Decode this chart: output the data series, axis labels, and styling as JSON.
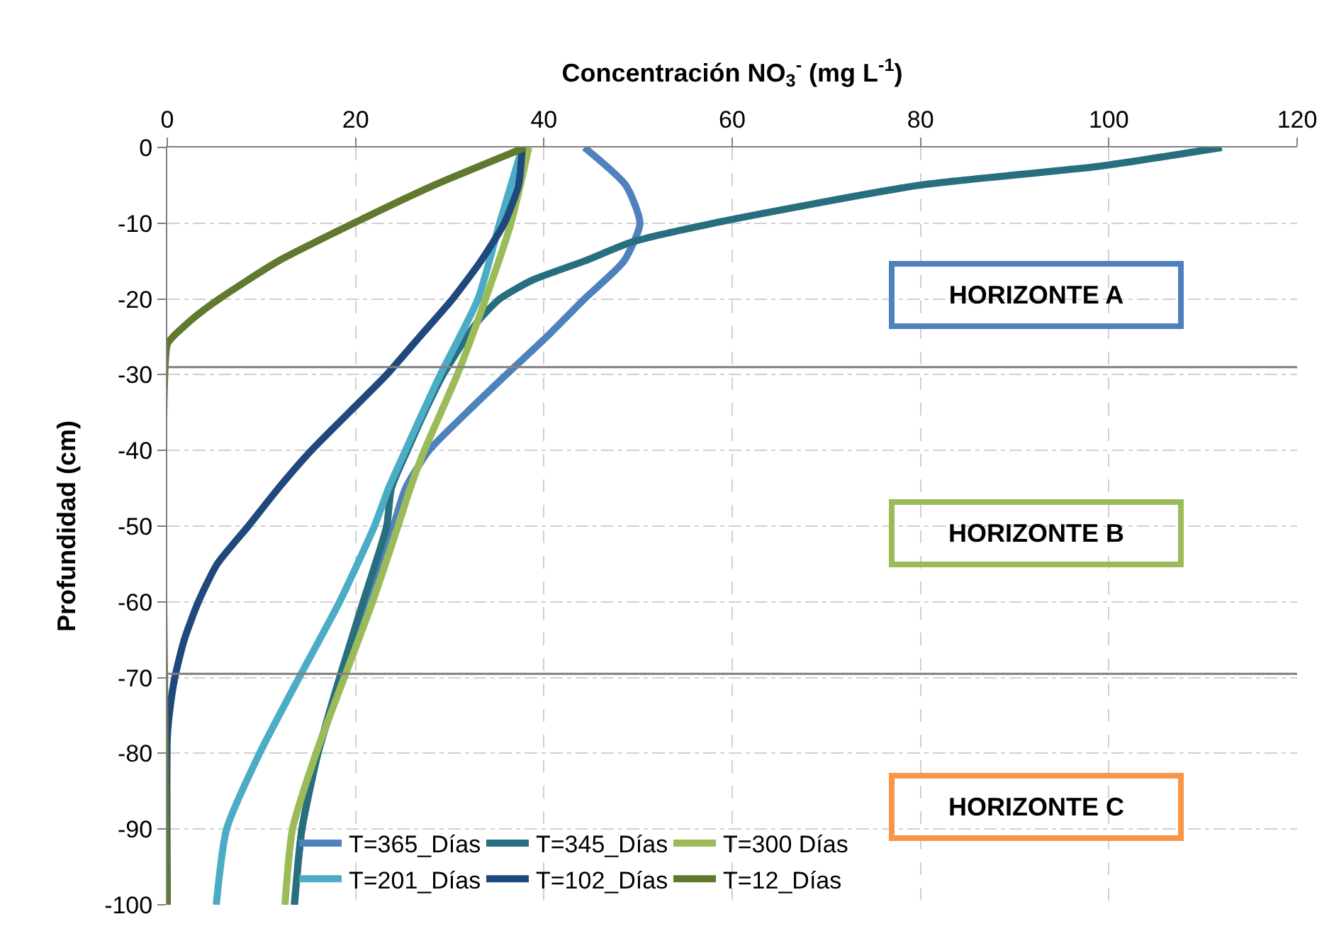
{
  "chart_data": {
    "type": "line",
    "xlabel": "Concentración NO$_{3}$$^{-}$ (mg L$^{-1}$)",
    "ylabel": "Profundidad (cm)",
    "xlim": [
      0,
      120
    ],
    "xticks": [
      0,
      20,
      40,
      60,
      80,
      100,
      120
    ],
    "ylim": [
      -100,
      0
    ],
    "yticks": [
      0,
      -10,
      -20,
      -30,
      -40,
      -50,
      -60,
      -70,
      -80,
      -90,
      -100
    ],
    "grid": true,
    "legend": "bottom",
    "marker": "none",
    "line_style": "solid",
    "series": [
      {
        "name": "T=365_Días",
        "color": "#4f81bd",
        "x": [
          44.3,
          48.7,
          50.2,
          48.5,
          44.3,
          40.3,
          36.0,
          31.8,
          27.8,
          25.3,
          24.0,
          21.0,
          18.5,
          16.0,
          14.3,
          13.5
        ],
        "values": [
          0,
          -5,
          -10,
          -15,
          -20,
          -25,
          -30,
          -35,
          -40,
          -45,
          -50,
          -60,
          -70,
          -80,
          -90,
          -100
        ]
      },
      {
        "name": "T=345_Días",
        "color": "#276e7e",
        "x": [
          112,
          98.8,
          79.8,
          58,
          49.3,
          44.3,
          38.8,
          35.3,
          33.3,
          31.8,
          29.3,
          27.3,
          25.5,
          23.8,
          23.3,
          20.8,
          18.3,
          16.0,
          14.3,
          13.5
        ],
        "values": [
          0,
          -2.5,
          -5,
          -10,
          -12.5,
          -15,
          -17.5,
          -20,
          -22.5,
          -25,
          -30,
          -35,
          -40,
          -45,
          -50,
          -60,
          -70,
          -80,
          -90,
          -100
        ]
      },
      {
        "name": "T=300 Días",
        "color": "#9bbb59",
        "x": [
          38.4,
          36.5,
          33.8,
          30.8,
          27.3,
          25.8,
          24.5,
          21.8,
          18.8,
          15.8,
          13.3,
          12.5
        ],
        "values": [
          0,
          -10,
          -20,
          -30,
          -40,
          -45,
          -50,
          -60,
          -70,
          -80,
          -90,
          -100
        ]
      },
      {
        "name": "T=201_Días",
        "color": "#4bacc6",
        "x": [
          37.7,
          35.3,
          33.0,
          29.0,
          25.3,
          23.5,
          22.0,
          18.3,
          14.0,
          9.8,
          6.3,
          5.2
        ],
        "values": [
          0,
          -10,
          -20,
          -30,
          -40,
          -45,
          -50,
          -60,
          -70,
          -80,
          -90,
          -100
        ]
      },
      {
        "name": "T=102_Días",
        "color": "#1f497d",
        "x": [
          37.7,
          37.3,
          35.8,
          33.3,
          30.3,
          26.8,
          23.3,
          19.3,
          15.3,
          11.8,
          8.6,
          5.3,
          3.3,
          1.8,
          0.8,
          0.2,
          0,
          0
        ],
        "values": [
          0,
          -5,
          -10,
          -15,
          -20,
          -25,
          -30,
          -35,
          -40,
          -45,
          -50,
          -55,
          -60,
          -65,
          -70,
          -75,
          -78,
          -100
        ]
      },
      {
        "name": "T=12_Días",
        "color": "#5f7a2e",
        "x": [
          38.0,
          28.3,
          19.8,
          11.8,
          5.5,
          2.8,
          0.6,
          0,
          0
        ],
        "values": [
          0,
          -5,
          -10,
          -15,
          -20,
          -22.5,
          -25,
          -26,
          -100
        ]
      }
    ],
    "ref_lines": [
      {
        "axis": "y",
        "value": -29,
        "color": "#808080"
      },
      {
        "axis": "y",
        "value": -69.5,
        "color": "#808080"
      }
    ],
    "annotations": [
      "HORIZONTE A",
      "HORIZONTE B",
      "HORIZONTE C"
    ]
  }
}
